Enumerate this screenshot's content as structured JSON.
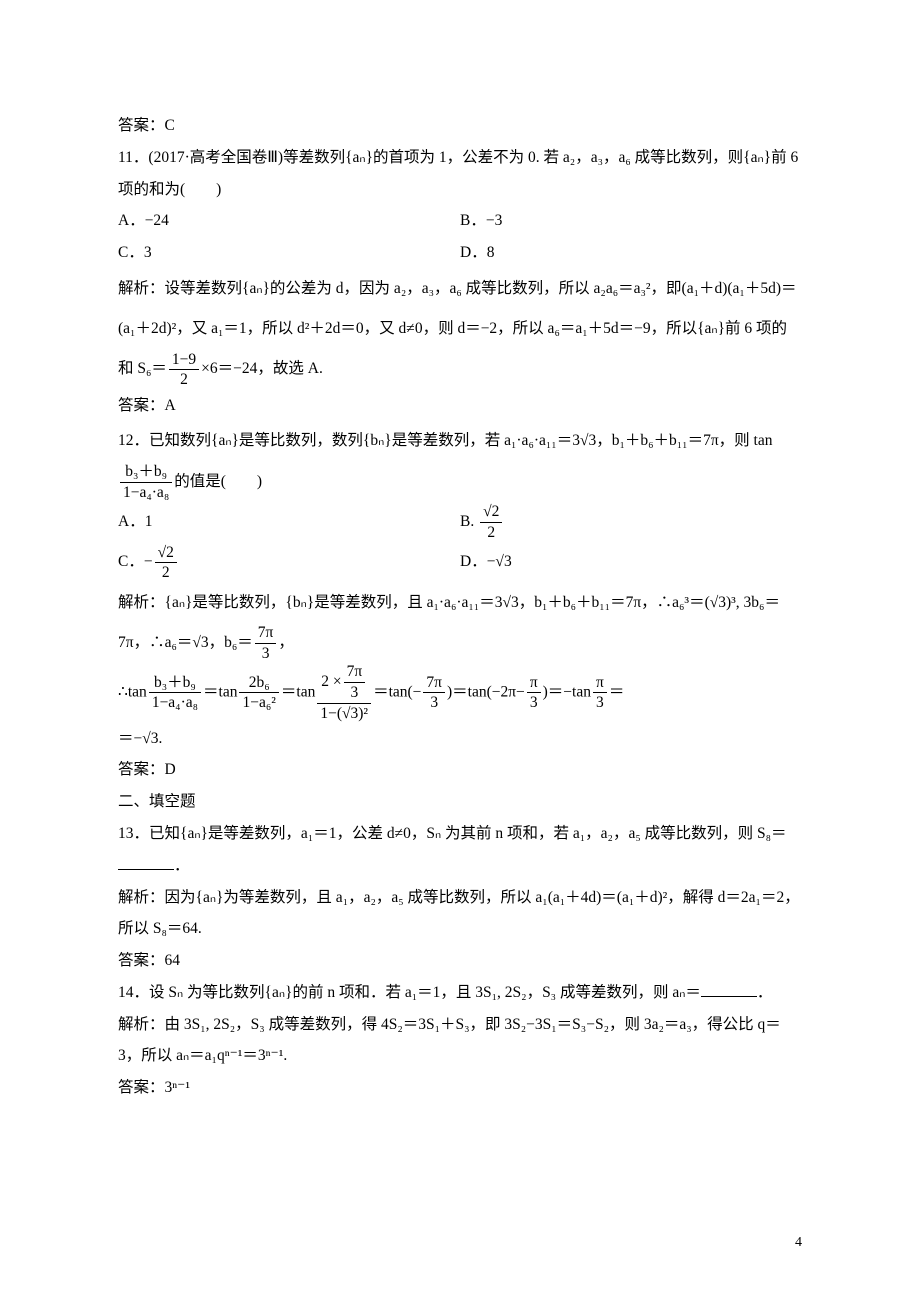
{
  "ans_c": "答案：C",
  "q11": {
    "stem": "11．(2017·高考全国卷Ⅲ)等差数列{aₙ}的首项为 1，公差不为 0. 若 a₂，a₃，a₆ 成等比数列，则{aₙ}前 6 项的和为(　　)",
    "A": "A．−24",
    "B": "B．−3",
    "C": "C．3",
    "D": "D．8",
    "sol1": "解析：设等差数列{aₙ}的公差为 d，因为 a₂，a₃，a₆ 成等比数列，所以 a₂a₆＝a₃²，即(a₁＋d)(a₁＋5d)＝(a₁＋2d)²，又 a₁＝1，所以 d²＋2d＝0，又 d≠0，则 d＝−2，所以 a₆＝a₁＋5d＝−9，所以{aₙ}前 6 项的和 S₆＝",
    "sol_frac_num": "1−9",
    "sol_frac_den": "2",
    "sol2": "×6＝−24，故选 A.",
    "ans": "答案：A"
  },
  "q12": {
    "stem1": "12．已知数列{aₙ}是等比数列，数列{bₙ}是等差数列，若 a₁·a₆·a₁₁＝3√3，b₁＋b₆＋b₁₁＝7π，则 tan",
    "frac_a_num": "b₃＋b₉",
    "frac_a_den": "1−a₄·a₈",
    "stem2": "的值是(　　)",
    "A": "A．1",
    "B_pre": "B. ",
    "B_num": "√2",
    "B_den": "2",
    "C_pre": "C．−",
    "C_num": "√2",
    "C_den": "2",
    "D": "D．−√3",
    "sol1": "解析：{aₙ}是等比数列，{bₙ}是等差数列，且 a₁·a₆·a₁₁＝3√3，b₁＋b₆＋b₁₁＝7π，∴a₆³＝(√3)³, 3b₆＝7π，∴a₆＝√3，b₆＝",
    "sol_frac1_num": "7π",
    "sol_frac1_den": "3",
    "sol1_tail": "，",
    "sol2_pre": "∴tan",
    "chain_f1_num": "b₃＋b₉",
    "chain_f1_den": "1−a₄·a₈",
    "eq": "＝",
    "chain_f2_num": "2b₆",
    "chain_f2_den": "1−a₆²",
    "chain_f3_num_pre": "2 ×",
    "chain_f3_num_num": "7π",
    "chain_f3_num_den": "3",
    "chain_f3_den": "1−(√3)²",
    "chain_tan1": "＝tan(−",
    "chain_f4_num": "7π",
    "chain_f4_den": "3",
    "chain_tan2": ")＝tan(−2π−",
    "chain_f5_num": "π",
    "chain_f5_den": "3",
    "chain_tan3": ")＝−tan",
    "chain_f6_num": "π",
    "chain_f6_den": "3",
    "chain_tail": "＝−√3.",
    "ans": "答案：D"
  },
  "section2": "二、填空题",
  "q13": {
    "stem": "13．已知{aₙ}是等差数列，a₁＝1，公差 d≠0，Sₙ 为其前 n 项和，若 a₁，a₂，a₅ 成等比数列，则 S₈＝",
    "stem_tail": "．",
    "sol": "解析：因为{aₙ}为等差数列，且 a₁，a₂，a₅ 成等比数列，所以 a₁(a₁＋4d)＝(a₁＋d)²，解得 d＝2a₁＝2，所以 S₈＝64.",
    "ans": "答案：64"
  },
  "q14": {
    "stem": "14．设 Sₙ 为等比数列{aₙ}的前 n 项和．若 a₁＝1，且 3S₁, 2S₂，S₃ 成等差数列，则 aₙ＝",
    "stem_tail": "．",
    "sol": "解析：由 3S₁, 2S₂，S₃ 成等差数列，得 4S₂＝3S₁＋S₃，即 3S₂−3S₁＝S₃−S₂，则 3a₂＝a₃，得公比 q＝3，所以 aₙ＝a₁qⁿ⁻¹＝3ⁿ⁻¹.",
    "ans": "答案：3ⁿ⁻¹"
  },
  "page_num": "4"
}
